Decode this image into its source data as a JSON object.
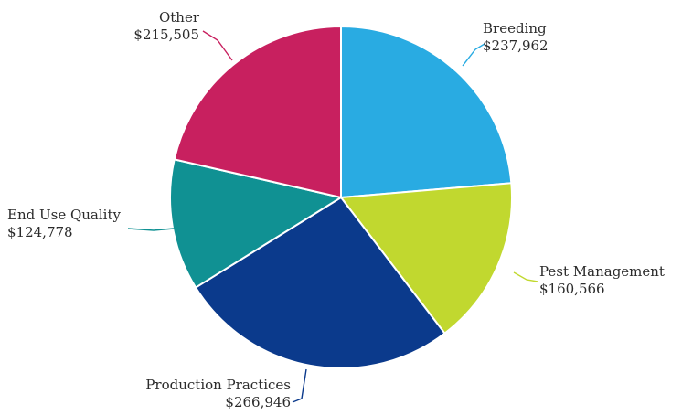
{
  "chart_data": {
    "type": "pie",
    "slices": [
      {
        "label": "Breeding",
        "value_text": "$237,962",
        "value": 237962,
        "color": "#29abe2"
      },
      {
        "label": "Pest Management",
        "value_text": "$160,566",
        "value": 160566,
        "color": "#c1d82f"
      },
      {
        "label": "Production Practices",
        "value_text": "$266,946",
        "value": 266946,
        "color": "#0b3a8c"
      },
      {
        "label": "End Use Quality",
        "value_text": "$124,778",
        "value": 124778,
        "color": "#109193"
      },
      {
        "label": "Other",
        "value_text": "$215,505",
        "value": 215505,
        "color": "#c8205f"
      }
    ],
    "start": "12 o'clock",
    "direction": "clockwise",
    "legend": "none (labels placed next to slices with leader lines)"
  }
}
